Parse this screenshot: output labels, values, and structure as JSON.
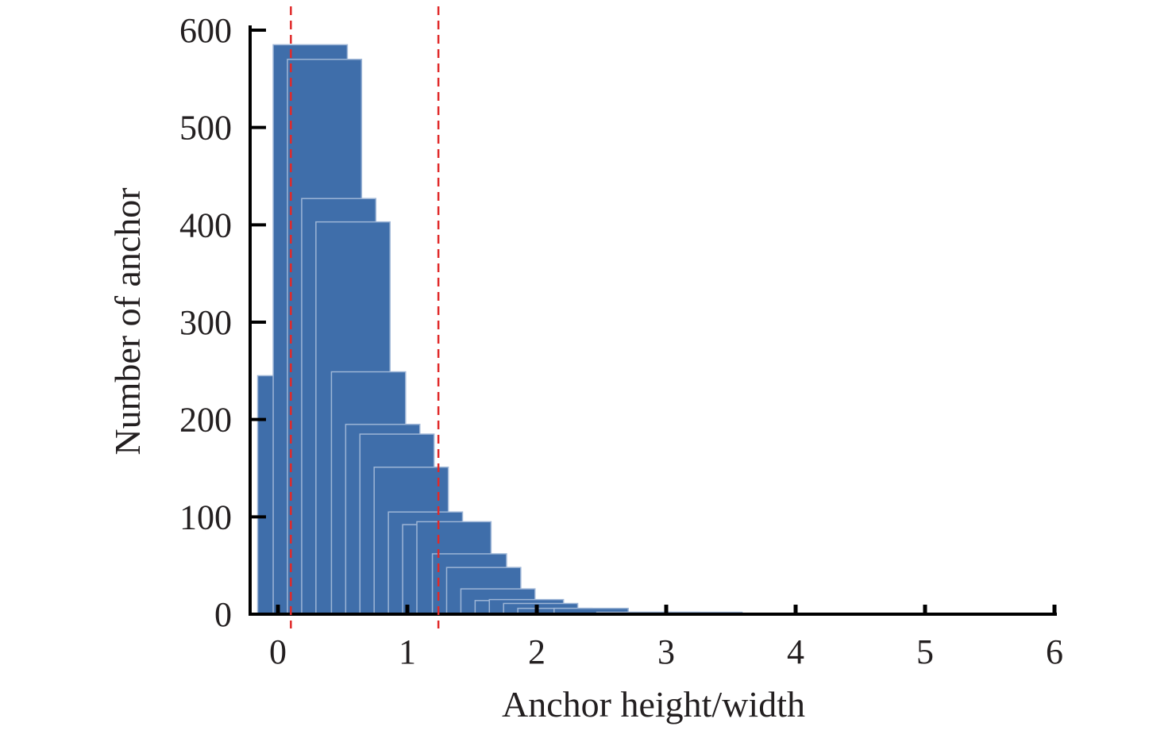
{
  "chart_data": {
    "type": "bar",
    "title": "",
    "xlabel": "Anchor height/width",
    "ylabel": "Number of anchor",
    "xlim": [
      0,
      6
    ],
    "ylim": [
      0,
      600
    ],
    "xticks": [
      "0",
      "1",
      "2",
      "3",
      "4",
      "5",
      "6"
    ],
    "yticks": [
      "0",
      "100",
      "200",
      "300",
      "400",
      "500",
      "600"
    ],
    "bin_width": 0.111,
    "bins": [
      {
        "x": 0.13,
        "value": 245
      },
      {
        "x": 0.25,
        "value": 585
      },
      {
        "x": 0.36,
        "value": 570
      },
      {
        "x": 0.47,
        "value": 427
      },
      {
        "x": 0.58,
        "value": 403
      },
      {
        "x": 0.7,
        "value": 249
      },
      {
        "x": 0.81,
        "value": 195
      },
      {
        "x": 0.92,
        "value": 185
      },
      {
        "x": 1.03,
        "value": 151
      },
      {
        "x": 1.14,
        "value": 105
      },
      {
        "x": 1.25,
        "value": 92
      },
      {
        "x": 1.36,
        "value": 95
      },
      {
        "x": 1.48,
        "value": 62
      },
      {
        "x": 1.59,
        "value": 48
      },
      {
        "x": 1.7,
        "value": 26
      },
      {
        "x": 1.81,
        "value": 14
      },
      {
        "x": 1.92,
        "value": 15
      },
      {
        "x": 2.03,
        "value": 11
      },
      {
        "x": 2.14,
        "value": 6
      },
      {
        "x": 2.42,
        "value": 6
      },
      {
        "x": 2.75,
        "value": 2
      },
      {
        "x": 2.97,
        "value": 2
      },
      {
        "x": 3.3,
        "value": 2
      }
    ],
    "reference_lines_x": [
      0.1,
      1.24
    ],
    "colors": {
      "bar": "#3f6eaa",
      "bar_edge": "#9db5d6",
      "axis": "#000000",
      "reference_line": "#e02a2a"
    },
    "grid": false,
    "legend": "none"
  }
}
